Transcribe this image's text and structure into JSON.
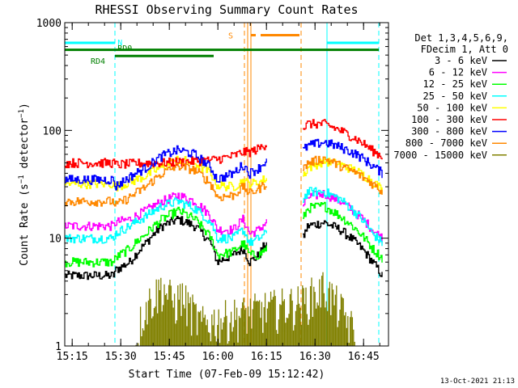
{
  "chart_data": {
    "type": "line",
    "title": "RHESSI Observing Summary Count Rates",
    "xlabel": "Start Time (07-Feb-09 15:12:42)",
    "ylabel_parts": [
      "Count Rate (s",
      "−1",
      " detector",
      "−1",
      ")"
    ],
    "yscale": "log",
    "ylim": [
      1,
      1000
    ],
    "xlim_minutes": [
      0,
      100
    ],
    "x_ticks": [
      {
        "t": 2.3,
        "label": "15:15"
      },
      {
        "t": 17.3,
        "label": "15:30"
      },
      {
        "t": 32.3,
        "label": "15:45"
      },
      {
        "t": 47.3,
        "label": "16:00"
      },
      {
        "t": 62.3,
        "label": "16:15"
      },
      {
        "t": 77.3,
        "label": "16:30"
      },
      {
        "t": 92.3,
        "label": "16:45"
      }
    ],
    "y_ticks": [
      {
        "v": 1,
        "label": "1"
      },
      {
        "v": 10,
        "label": "10"
      },
      {
        "v": 100,
        "label": "100"
      },
      {
        "v": 1000,
        "label": "1000"
      }
    ],
    "legend_header": [
      "Det 1,3,4,5,6,9,",
      "FDecim 1, Att 0"
    ],
    "footer_timestamp": "13-Oct-2021 21:13",
    "data_gap_minutes": [
      62.5,
      73.5
    ],
    "series": [
      {
        "name": "3 - 6 keV",
        "color": "#000000",
        "t": [
          0,
          5,
          10,
          15,
          15.5,
          20,
          25,
          30,
          35,
          40,
          45,
          47,
          52,
          55,
          57,
          60,
          62,
          73.5,
          75,
          80,
          85,
          90,
          95,
          98
        ],
        "v": [
          4.5,
          4.5,
          4.5,
          4.5,
          5,
          6,
          9,
          13,
          15,
          13,
          9,
          6,
          7,
          8,
          6,
          7,
          9,
          10,
          13,
          14,
          12,
          9,
          6,
          4.5
        ]
      },
      {
        "name": "6 - 12 keV",
        "color": "#ff00ff",
        "t": [
          0,
          5,
          10,
          15,
          15.5,
          20,
          25,
          30,
          35,
          40,
          45,
          47,
          52,
          55,
          57,
          60,
          62,
          73.5,
          75,
          80,
          85,
          90,
          95,
          98
        ],
        "v": [
          13,
          13,
          13,
          13,
          14,
          15,
          18,
          22,
          25,
          22,
          16,
          12,
          12,
          15,
          11,
          12,
          14,
          20,
          24,
          26,
          22,
          17,
          12,
          10
        ]
      },
      {
        "name": "12 - 25 keV",
        "color": "#00ff00",
        "t": [
          0,
          5,
          10,
          15,
          15.5,
          20,
          25,
          30,
          35,
          40,
          45,
          47,
          52,
          55,
          57,
          60,
          62,
          73.5,
          75,
          80,
          85,
          90,
          95,
          98
        ],
        "v": [
          6,
          6,
          6,
          6,
          6.5,
          8,
          11,
          15,
          18,
          15,
          10,
          7,
          7.5,
          9,
          7,
          7,
          8,
          15,
          19,
          20,
          16,
          12,
          8,
          6.5
        ]
      },
      {
        "name": "25 - 50 keV",
        "color": "#00ffff",
        "t": [
          0,
          5,
          10,
          15,
          15.5,
          20,
          25,
          30,
          35,
          40,
          45,
          47,
          52,
          55,
          57,
          60,
          62,
          73.5,
          75,
          80,
          85,
          90,
          95,
          98
        ],
        "v": [
          10,
          10,
          10,
          10,
          11,
          13,
          16,
          20,
          22,
          19,
          14,
          10,
          10,
          12,
          9,
          10,
          11,
          23,
          27,
          27,
          23,
          17,
          11,
          9
        ]
      },
      {
        "name": "50 - 100 keV",
        "color": "#ffff00",
        "t": [
          0,
          5,
          10,
          15,
          15.5,
          20,
          25,
          30,
          35,
          40,
          45,
          47,
          52,
          55,
          57,
          60,
          62,
          73.5,
          75,
          80,
          85,
          90,
          95,
          98
        ],
        "v": [
          32,
          32,
          32,
          32,
          30,
          33,
          38,
          46,
          54,
          50,
          40,
          31,
          30,
          34,
          32,
          33,
          36,
          38,
          45,
          52,
          48,
          42,
          34,
          28
        ]
      },
      {
        "name": "100 - 300 keV",
        "color": "#ff0000",
        "t": [
          0,
          5,
          10,
          15,
          15.5,
          20,
          25,
          30,
          35,
          40,
          45,
          47,
          52,
          55,
          57,
          60,
          62,
          73.5,
          75,
          80,
          85,
          90,
          95,
          98
        ],
        "v": [
          50,
          50,
          50,
          50,
          48,
          49,
          50,
          50,
          51,
          52,
          53,
          54,
          58,
          63,
          63,
          68,
          75,
          105,
          115,
          115,
          100,
          83,
          65,
          57
        ]
      },
      {
        "name": "300 - 800 keV",
        "color": "#0000ff",
        "t": [
          0,
          5,
          10,
          15,
          15.5,
          20,
          25,
          30,
          35,
          40,
          45,
          47,
          52,
          55,
          57,
          60,
          62,
          73.5,
          75,
          80,
          85,
          90,
          95,
          98
        ],
        "v": [
          35,
          35,
          35,
          35,
          30,
          37,
          45,
          58,
          66,
          60,
          45,
          35,
          40,
          48,
          40,
          45,
          52,
          65,
          72,
          78,
          70,
          60,
          47,
          40
        ]
      },
      {
        "name": "800 - 7000 keV",
        "color": "#ff8800",
        "t": [
          0,
          5,
          10,
          15,
          15.5,
          20,
          25,
          30,
          35,
          40,
          45,
          47,
          52,
          55,
          57,
          60,
          62,
          73.5,
          75,
          80,
          85,
          90,
          95,
          98
        ],
        "v": [
          22,
          22,
          22,
          22,
          20,
          24,
          30,
          40,
          47,
          43,
          32,
          24,
          25,
          30,
          26,
          29,
          32,
          43,
          50,
          55,
          47,
          40,
          32,
          27
        ]
      },
      {
        "name": "7000 - 15000 keV",
        "color": "#808000",
        "t": [
          22,
          24,
          26,
          28,
          30,
          32,
          34,
          36,
          38,
          40,
          42,
          74,
          76,
          78,
          80,
          82,
          84,
          86,
          88,
          90
        ],
        "v": [
          1,
          2,
          2.6,
          3,
          3.6,
          3,
          2.5,
          3,
          2.4,
          2,
          1.6,
          2.6,
          3,
          3,
          3.6,
          3,
          2.5,
          2,
          1.6,
          1.2
        ]
      }
    ],
    "vlines": [
      {
        "t": 0,
        "color": "#00ffff",
        "dash": "solid"
      },
      {
        "t": 15.5,
        "color": "#00ffff",
        "dash": "dashed"
      },
      {
        "t": 55.5,
        "color": "#ff8800",
        "dash": "dashed"
      },
      {
        "t": 56.5,
        "color": "#ff8800",
        "dash": "solid"
      },
      {
        "t": 57.5,
        "color": "#ff8800",
        "dash": "solid"
      },
      {
        "t": 73,
        "color": "#ff8800",
        "dash": "dashed"
      },
      {
        "t": 81,
        "color": "#00ffff",
        "dash": "solid"
      },
      {
        "t": 97,
        "color": "#00ffff",
        "dash": "dashed"
      }
    ],
    "flag_bars": [
      {
        "label": "N",
        "color": "#00ffff",
        "y": 650,
        "segments": [
          [
            0,
            15.5
          ],
          [
            81,
            97
          ]
        ],
        "label_t": 16.3,
        "label_y": 660
      },
      {
        "label": "RD0",
        "color": "#008000",
        "y": 560,
        "segments": [
          [
            0,
            97
          ]
        ],
        "label_t": 16.3,
        "label_y": 585
      },
      {
        "label": "RD4",
        "color": "#008000",
        "y": 490,
        "segments": [
          [
            15.5,
            46
          ]
        ],
        "label_t": 8,
        "label_y": 445
      },
      {
        "label": "S",
        "color": "#ff8800",
        "y": 765,
        "segments": [
          [
            57.5,
            59
          ],
          [
            60.5,
            72.5
          ]
        ],
        "label_t": 50.5,
        "label_y": 765
      }
    ]
  }
}
